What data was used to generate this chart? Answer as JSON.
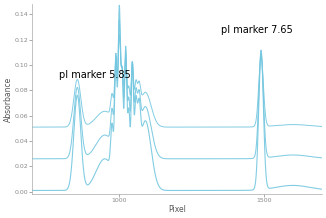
{
  "xlabel": "Pixel",
  "ylabel": "Absorbance",
  "xlim": [
    700,
    1700
  ],
  "ylim": [
    -0.002,
    0.148
  ],
  "yticks": [
    0.0,
    0.02,
    0.04,
    0.06,
    0.08,
    0.1,
    0.12,
    0.14
  ],
  "xticks": [
    1000,
    1500
  ],
  "line_color": "#74c7e0",
  "bg_color": "#ffffff",
  "annotation1": "pI marker 5.85",
  "annotation2": "pI marker 7.65",
  "offsets": [
    0.0,
    0.025,
    0.05
  ],
  "scales": [
    1.0,
    0.75,
    0.5
  ]
}
